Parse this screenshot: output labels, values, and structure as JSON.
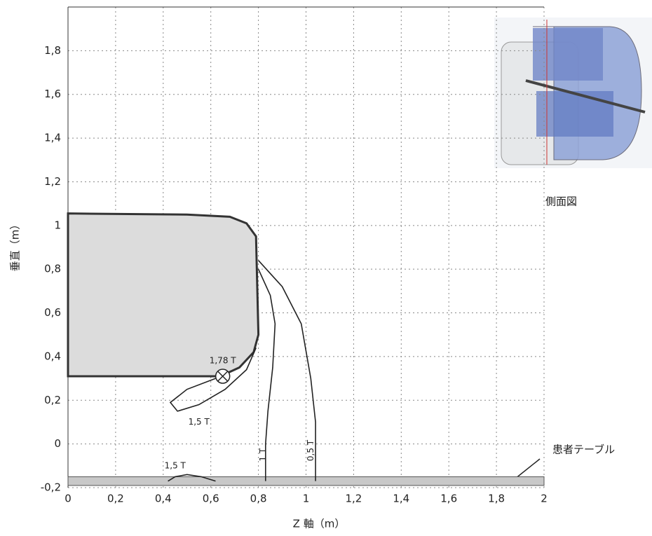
{
  "chart_data": {
    "type": "contour",
    "xlabel": "Z 軸（m）",
    "ylabel": "垂直（m）",
    "xlim": [
      0,
      2
    ],
    "ylim": [
      -0.2,
      2.0
    ],
    "xticks": [
      0,
      {
        "value": 0.2,
        "label": "0,2"
      },
      {
        "value": 0.4,
        "label": "0,4"
      },
      {
        "value": 0.6,
        "label": "0,6"
      },
      {
        "value": 0.8,
        "label": "0,8"
      },
      1,
      {
        "value": 1.2,
        "label": "1,2"
      },
      {
        "value": 1.4,
        "label": "1,4"
      },
      {
        "value": 1.6,
        "label": "1,6"
      },
      {
        "value": 1.8,
        "label": "1,8"
      },
      2
    ],
    "yticks": [
      {
        "value": -0.2,
        "label": "-0,2"
      },
      0,
      {
        "value": 0.2,
        "label": "0,2"
      },
      {
        "value": 0.4,
        "label": "0,4"
      },
      {
        "value": 0.6,
        "label": "0,6"
      },
      {
        "value": 0.8,
        "label": "0,8"
      },
      1,
      {
        "value": 1.2,
        "label": "1,2"
      },
      {
        "value": 1.4,
        "label": "1,4"
      },
      {
        "value": 1.6,
        "label": "1,6"
      },
      {
        "value": 1.8,
        "label": "1,8"
      }
    ],
    "grid": true,
    "magnet": {
      "color": "#dcdcdc",
      "x": [
        0,
        0.5,
        0.68,
        0.75,
        0.79,
        0.8,
        0.78,
        0.72,
        0.64,
        0
      ],
      "y": [
        1.055,
        1.05,
        1.04,
        1.01,
        0.95,
        0.5,
        0.42,
        0.35,
        0.31,
        0.31
      ]
    },
    "table": {
      "color": "#c8c8c8",
      "ylim": [
        -0.19,
        -0.15
      ]
    },
    "series": [
      {
        "label": "1,5 T",
        "color": "#222222",
        "x": [
          0.79,
          0.75,
          0.66,
          0.55,
          0.46,
          0.43,
          0.5,
          0.62
        ],
        "y": [
          0.44,
          0.34,
          0.25,
          0.18,
          0.15,
          0.19,
          0.25,
          0.3
        ]
      },
      {
        "label": "1 T",
        "color": "#222222",
        "x": [
          0.8,
          0.85,
          0.87,
          0.86,
          0.84,
          0.83,
          0.83
        ],
        "y": [
          0.8,
          0.68,
          0.55,
          0.35,
          0.15,
          0,
          -0.17
        ]
      },
      {
        "label": "0,5 T",
        "color": "#222222",
        "x": [
          0.8,
          0.9,
          0.98,
          1.02,
          1.04,
          1.04,
          1.04
        ],
        "y": [
          0.84,
          0.72,
          0.55,
          0.3,
          0.1,
          0,
          -0.17
        ]
      },
      {
        "label": "1,5 T",
        "color": "#222222",
        "x": [
          0.42,
          0.45,
          0.5,
          0.56,
          0.62
        ],
        "y": [
          -0.17,
          -0.15,
          -0.14,
          -0.15,
          -0.17
        ]
      }
    ],
    "peak": {
      "label": "1,78 T",
      "x": 0.65,
      "y": 0.31
    },
    "annotations": [
      "側面図",
      "患者テーブル"
    ]
  }
}
